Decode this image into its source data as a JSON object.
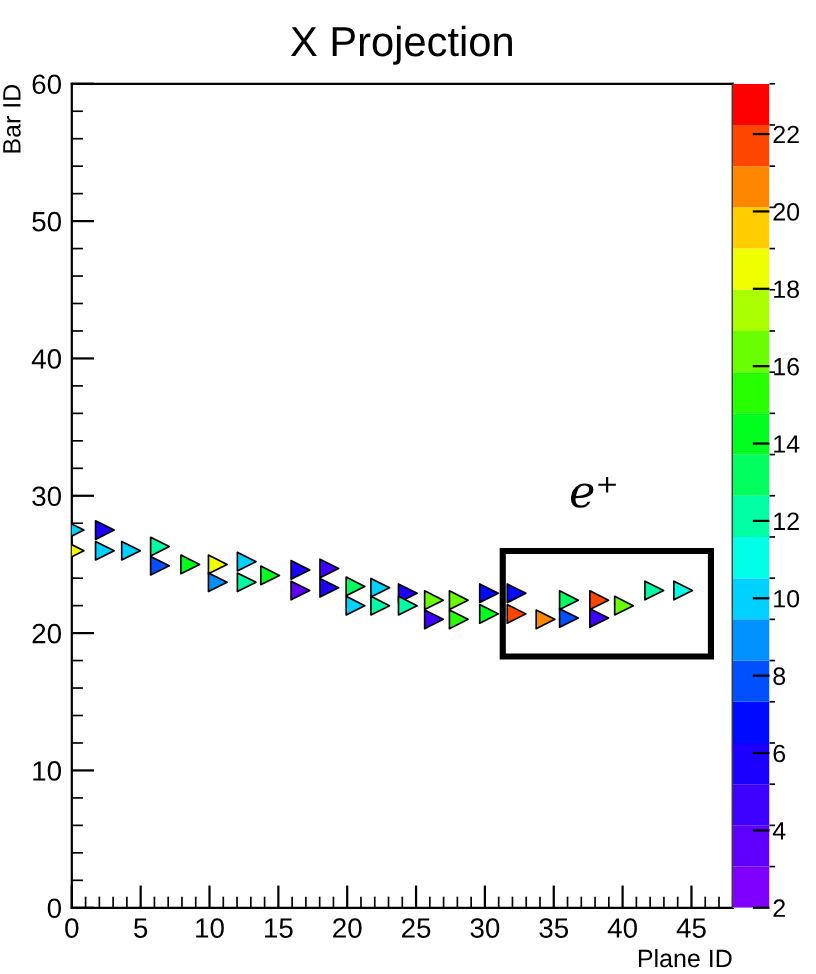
{
  "chart_data": {
    "type": "scatter",
    "title": "X Projection",
    "xlabel": "Plane ID",
    "ylabel": "Bar ID",
    "marker": "triangle",
    "grid": false,
    "legend": false,
    "xlim": [
      0,
      48
    ],
    "xticks": [
      0,
      5,
      10,
      15,
      20,
      25,
      30,
      35,
      40,
      45
    ],
    "ylim": [
      0,
      60
    ],
    "yticks": [
      0,
      10,
      20,
      30,
      40,
      50,
      60
    ],
    "clim": [
      2,
      23.3
    ],
    "cticks": [
      2,
      4,
      6,
      8,
      10,
      12,
      14,
      16,
      18,
      20,
      22
    ],
    "annotations": [
      "e⁺"
    ],
    "series": [
      {
        "x": [
          0.2,
          0.2,
          2.4,
          2.4,
          4.3,
          6.4,
          6.4,
          8.6,
          10.6,
          10.6,
          12.7,
          12.7,
          14.4,
          16.6,
          16.6,
          18.7,
          18.7,
          20.6,
          20.6,
          22.4,
          22.4,
          24.4,
          24.4,
          26.3,
          26.3,
          28.1,
          28.1,
          30.3,
          30.3,
          32.3,
          32.3,
          34.4,
          36.1,
          36.1,
          38.3,
          38.3,
          40.1,
          42.3,
          44.4
        ],
        "values": [
          27.5,
          26,
          27.5,
          26,
          26,
          26.3,
          24.9,
          25,
          25,
          23.7,
          25.2,
          23.7,
          24.2,
          24.6,
          23.1,
          24.7,
          23.3,
          23.4,
          22,
          23.3,
          22,
          22.9,
          22,
          22.4,
          21,
          22.4,
          21,
          22.9,
          21.4,
          22.9,
          21.4,
          21,
          22.4,
          21.1,
          22.4,
          21.1,
          22,
          23.1,
          23.1
        ],
        "cvalues": [
          9.5,
          18,
          6,
          10,
          10,
          12,
          8,
          14,
          18,
          9,
          10,
          12,
          14,
          6,
          4,
          5,
          6,
          13,
          10,
          10,
          12,
          6,
          12,
          16,
          5,
          16,
          15,
          7,
          14,
          7,
          22,
          21,
          13,
          8,
          22,
          5,
          16,
          12,
          11
        ]
      }
    ]
  }
}
